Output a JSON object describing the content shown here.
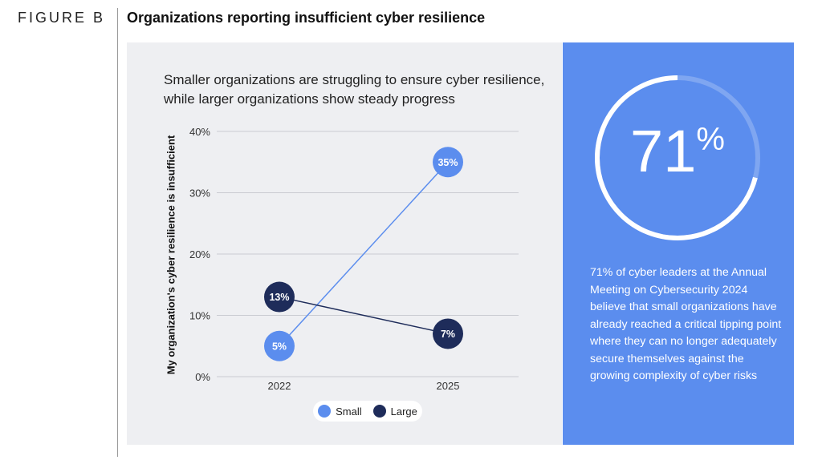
{
  "figure_label": "FIGURE B",
  "title": "Organizations reporting insufficient cyber resilience",
  "subtitle": "Smaller organizations are struggling to ensure cyber resilience, while larger organizations show steady progress",
  "chart_data": {
    "type": "line",
    "x": [
      "2022",
      "2025"
    ],
    "ylabel": "My organization's cyber resilience is insufficient",
    "yticks": [
      "0%",
      "10%",
      "20%",
      "30%",
      "40%"
    ],
    "ylim": [
      0,
      40
    ],
    "grid": true,
    "legend": "bottom-center",
    "series": [
      {
        "name": "Small",
        "values": [
          5,
          35
        ],
        "labels": [
          "5%",
          "35%"
        ],
        "color": "#5b8dee"
      },
      {
        "name": "Large",
        "values": [
          13,
          7
        ],
        "labels": [
          "13%",
          "7%"
        ],
        "color": "#1e2c5a"
      }
    ]
  },
  "stat": {
    "value": "71",
    "unit": "%",
    "fraction": 0.71,
    "text": "71% of cyber leaders at the Annual Meeting on Cybersecurity 2024 believe that small organizations have already reached a critical tipping point where they can no longer adequately secure themselves against the growing complexity of cyber risks"
  },
  "colors": {
    "panel_bg": "#eeeff2",
    "accent_blue": "#5b8dee",
    "navy": "#1e2c5a"
  }
}
